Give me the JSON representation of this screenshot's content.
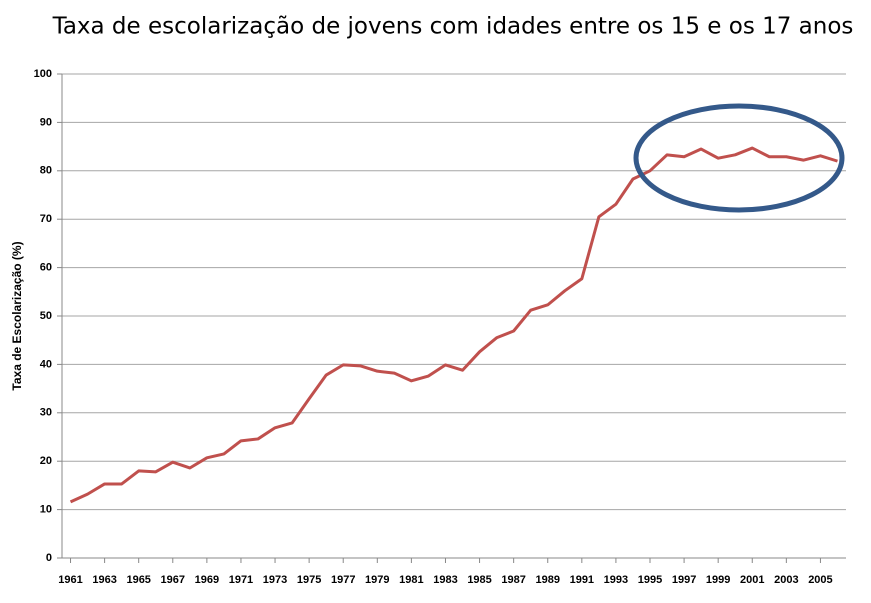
{
  "chart_data": {
    "type": "line",
    "title": "Taxa de escolarização de jovens com idades entre os 15 e os 17 anos",
    "y_label": "Taxa de Escolarização (%)",
    "x": [
      1961,
      1962,
      1963,
      1964,
      1965,
      1966,
      1967,
      1968,
      1969,
      1970,
      1971,
      1972,
      1973,
      1974,
      1975,
      1976,
      1977,
      1978,
      1979,
      1980,
      1981,
      1982,
      1983,
      1984,
      1985,
      1986,
      1987,
      1988,
      1989,
      1990,
      1991,
      1992,
      1993,
      1994,
      1995,
      1996,
      1997,
      1998,
      1999,
      2000,
      2001,
      2002,
      2003,
      2004,
      2005,
      2006
    ],
    "series": [
      {
        "name": null,
        "color": "#c0504d",
        "values": [
          11.6,
          13.2,
          15.3,
          15.3,
          18.0,
          17.8,
          19.8,
          18.6,
          20.7,
          21.5,
          24.2,
          24.6,
          26.9,
          27.9,
          32.9,
          37.8,
          39.9,
          39.7,
          38.6,
          38.2,
          36.6,
          37.6,
          39.9,
          38.8,
          42.6,
          45.5,
          46.9,
          51.2,
          52.3,
          55.2,
          57.7,
          70.5,
          73.1,
          78.3,
          80.0,
          83.3,
          82.9,
          84.5,
          82.6,
          83.3,
          84.7,
          82.9,
          82.9,
          82.2,
          83.1,
          82.0
        ]
      }
    ],
    "xlim": [
      1960.5,
      2006.5
    ],
    "xticks": [
      1961,
      1963,
      1965,
      1967,
      1969,
      1971,
      1973,
      1975,
      1977,
      1979,
      1981,
      1983,
      1985,
      1987,
      1989,
      1991,
      1993,
      1995,
      1997,
      1999,
      2001,
      2003,
      2005
    ],
    "ylim": [
      0,
      100
    ],
    "yticks": [
      0,
      10,
      20,
      30,
      40,
      50,
      60,
      70,
      80,
      90,
      100
    ],
    "grid": true
  }
}
